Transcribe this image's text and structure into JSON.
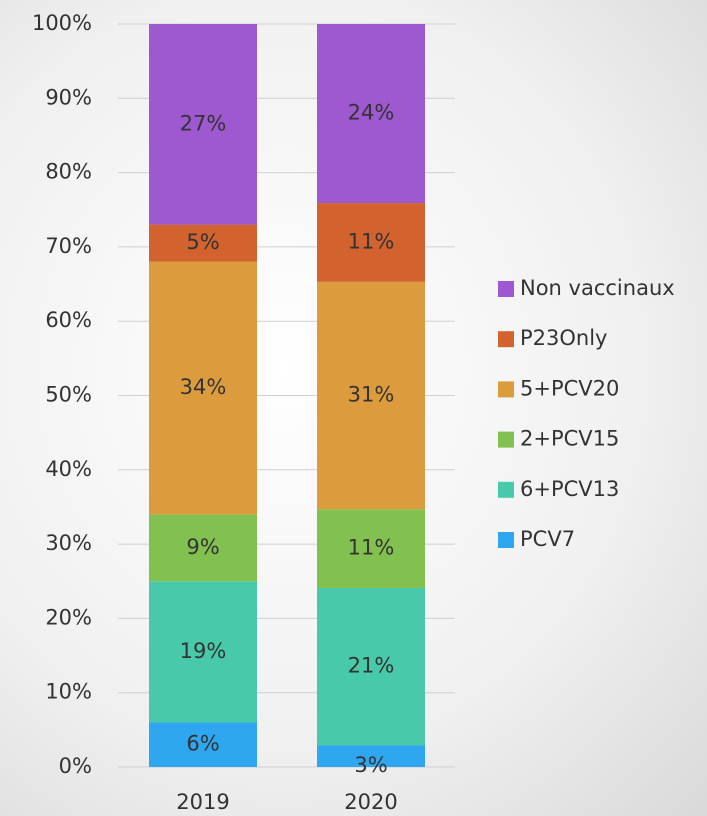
{
  "chart_data": {
    "type": "stacked_bar",
    "categories": [
      "2019",
      "2020"
    ],
    "series": [
      {
        "name": "PCV7",
        "color": "#2ea6f0",
        "values": [
          6,
          2.9
        ],
        "value_labels": [
          "6%",
          "3%"
        ]
      },
      {
        "name": "6+PCV13",
        "color": "#48c9a9",
        "values": [
          19,
          21.2
        ],
        "value_labels": [
          "19%",
          "21%"
        ]
      },
      {
        "name": "2+PCV15",
        "color": "#82c04f",
        "values": [
          9,
          10.6
        ],
        "value_labels": [
          "9%",
          "11%"
        ]
      },
      {
        "name": "5+PCV20",
        "color": "#dc9c3e",
        "values": [
          34,
          30.6
        ],
        "value_labels": [
          "34%",
          "31%"
        ]
      },
      {
        "name": "P23Only",
        "color": "#d2632f",
        "values": [
          5,
          10.6
        ],
        "value_labels": [
          "5%",
          "11%"
        ]
      },
      {
        "name": "Non vaccinaux",
        "color": "#9e58d0",
        "values": [
          27,
          24.1
        ],
        "value_labels": [
          "27%",
          "24%"
        ]
      }
    ],
    "ylim": [
      0,
      100
    ],
    "yticks": [
      {
        "value": 0,
        "label": "0%"
      },
      {
        "value": 10,
        "label": "10%"
      },
      {
        "value": 20,
        "label": "20%"
      },
      {
        "value": 30,
        "label": "30%"
      },
      {
        "value": 40,
        "label": "40%"
      },
      {
        "value": 50,
        "label": "50%"
      },
      {
        "value": 60,
        "label": "60%"
      },
      {
        "value": 70,
        "label": "70%"
      },
      {
        "value": 80,
        "label": "80%"
      },
      {
        "value": 90,
        "label": "90%"
      },
      {
        "value": 100,
        "label": "100%"
      }
    ],
    "grid": true,
    "legend": "right"
  }
}
